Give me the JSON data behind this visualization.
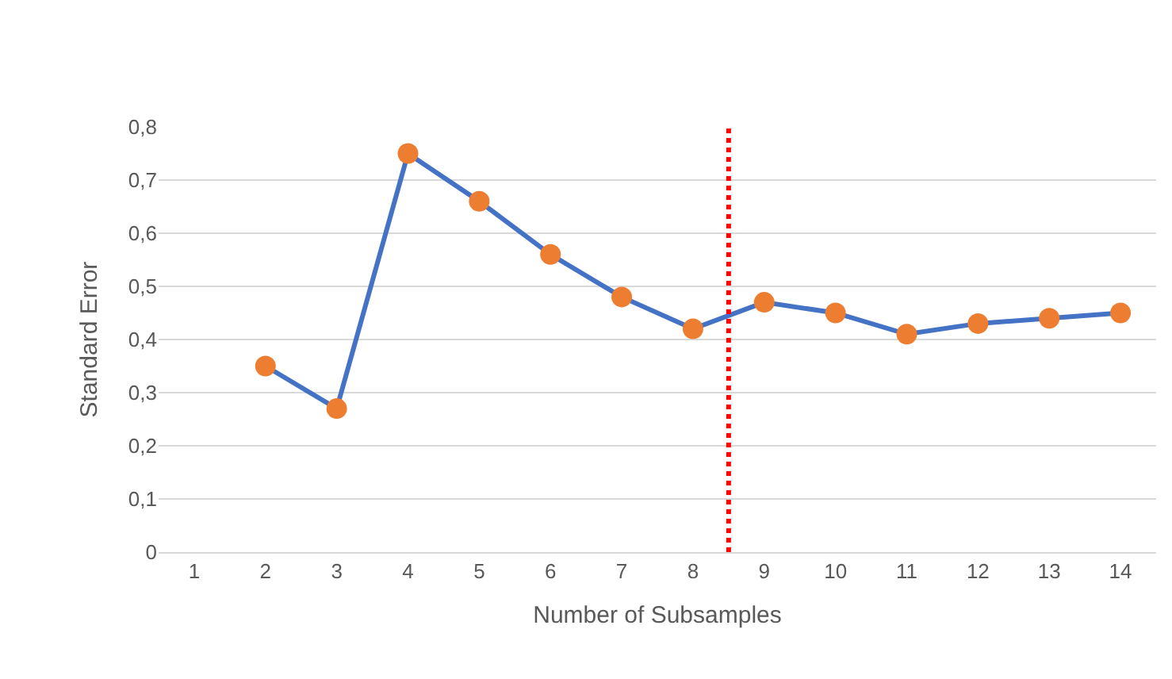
{
  "chart_data": {
    "type": "line",
    "xlabel": "Number of Subsamples",
    "ylabel": "Standard Error",
    "x": [
      2,
      3,
      4,
      5,
      6,
      7,
      8,
      9,
      10,
      11,
      12,
      13,
      14
    ],
    "series": [
      {
        "color": "#4472c4",
        "colors": [
          "#ed7d31",
          "#ed7d31",
          "#ed7d31",
          "#ed7d31",
          "#ed7d31",
          "#ed7d31",
          "#ed7d31",
          "#ed7d31",
          "#ed7d31",
          "#ed7d31",
          "#ed7d31",
          "#ed7d31",
          "#ed7d31"
        ],
        "values": [
          0.35,
          0.27,
          0.75,
          0.66,
          0.56,
          0.48,
          0.42,
          0.47,
          0.45,
          0.41,
          0.43,
          0.44,
          0.45
        ]
      }
    ],
    "marker": "circle",
    "xlim": [
      0.5,
      14.5
    ],
    "xticks": [
      1,
      2,
      3,
      4,
      5,
      6,
      7,
      8,
      9,
      10,
      11,
      12,
      13,
      14
    ],
    "ylim": [
      0,
      0.8
    ],
    "yticks": [
      {
        "value": 0,
        "label": "0"
      },
      {
        "value": 0.1,
        "label": "0,1"
      },
      {
        "value": 0.2,
        "label": "0,2"
      },
      {
        "value": 0.3,
        "label": "0,3"
      },
      {
        "value": 0.4,
        "label": "0,4"
      },
      {
        "value": 0.5,
        "label": "0,5"
      },
      {
        "value": 0.6,
        "label": "0,6"
      },
      {
        "value": 0.7,
        "label": "0,7"
      },
      {
        "value": 0.8,
        "label": "0,8"
      }
    ],
    "grid": "y",
    "ref_lines": [
      {
        "axis": "x",
        "value": 8.5,
        "label": null,
        "color": "#ff0000",
        "line_style": "dotted"
      }
    ]
  }
}
